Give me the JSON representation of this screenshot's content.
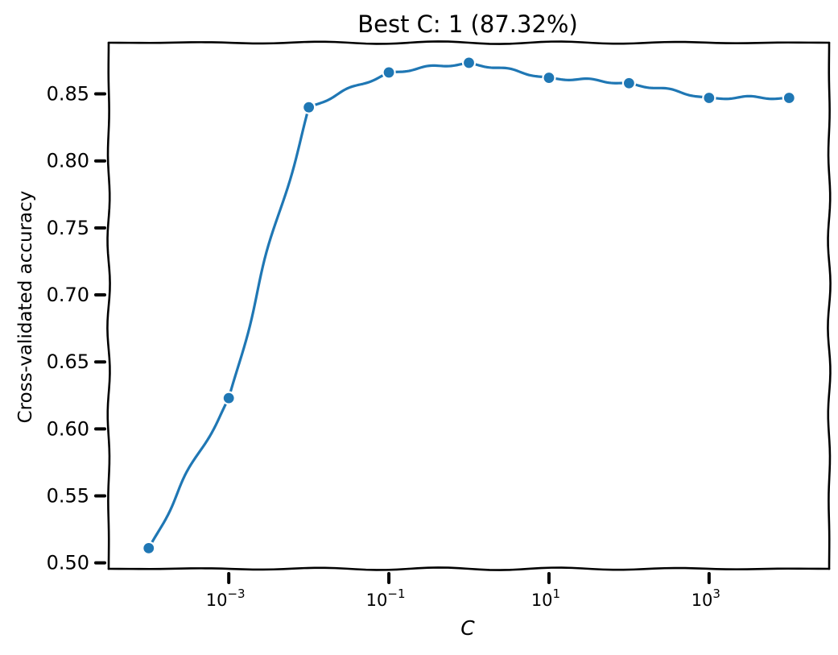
{
  "chart_data": {
    "type": "line",
    "title": "Best C: 1 (87.32%)",
    "xlabel": "C",
    "ylabel": "Cross-validated accuracy",
    "x_scale": "log",
    "x": [
      0.0001,
      0.001,
      0.01,
      0.1,
      1,
      10,
      100,
      1000,
      10000
    ],
    "series": [
      {
        "values": [
          0.511,
          0.623,
          0.84,
          0.866,
          0.8732,
          0.862,
          0.858,
          0.847,
          0.847
        ],
        "color": "#1f77b4",
        "marker": "circle"
      }
    ],
    "xlim": [
      3.16e-05,
      31623
    ],
    "ylim": [
      0.4956,
      0.8882
    ],
    "x_ticks": [
      {
        "value": 0.001,
        "base": "10",
        "exp": "−3"
      },
      {
        "value": 0.1,
        "base": "10",
        "exp": "−1"
      },
      {
        "value": 10,
        "base": "10",
        "exp": "1"
      },
      {
        "value": 1000,
        "base": "10",
        "exp": "3"
      }
    ],
    "y_ticks": [
      0.5,
      0.55,
      0.6,
      0.65,
      0.7,
      0.75,
      0.8,
      0.85
    ],
    "y_tick_labels": [
      "0.50",
      "0.55",
      "0.60",
      "0.65",
      "0.70",
      "0.75",
      "0.80",
      "0.85"
    ],
    "grid": false,
    "legend": "none",
    "style": "xkcd"
  }
}
